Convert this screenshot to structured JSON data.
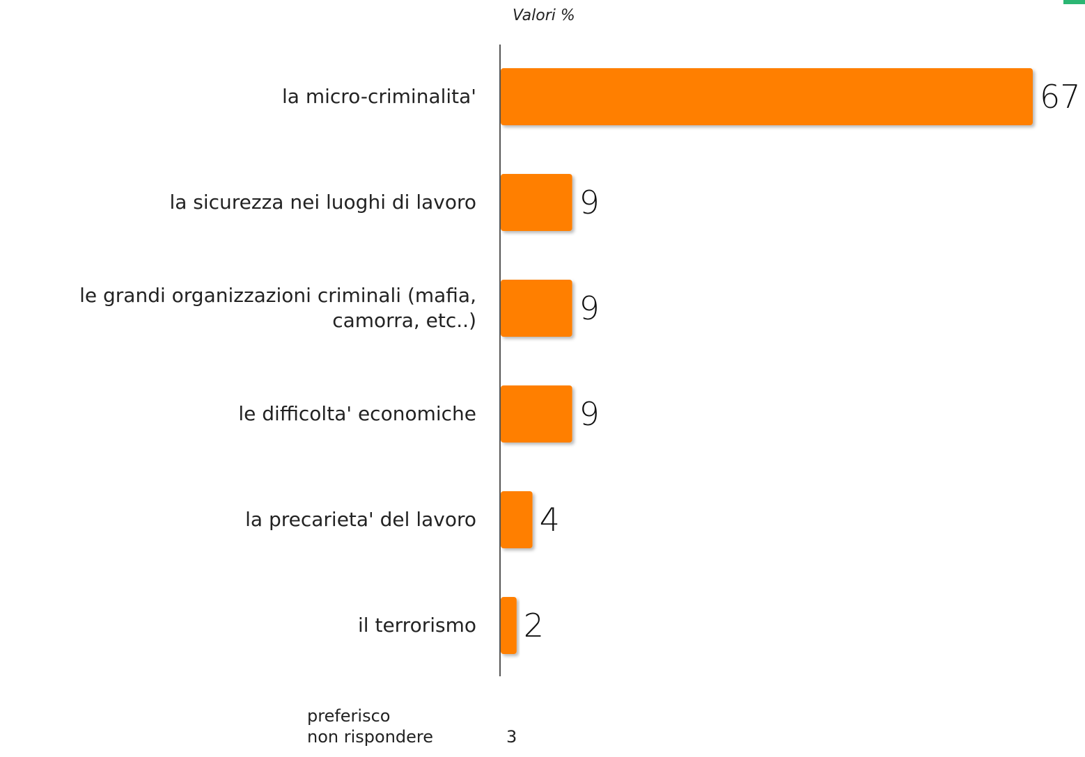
{
  "chart_data": {
    "type": "bar",
    "orientation": "horizontal",
    "unit_label": "Valori %",
    "categories": [
      "la micro-criminalita'",
      "la sicurezza nei luoghi di lavoro",
      "le grandi organizzazioni criminali (mafia, camorra, etc..)",
      "le difficolta' economiche",
      "la precarieta' del lavoro",
      "il terrorismo"
    ],
    "category_lines": [
      [
        "la micro-criminalita'"
      ],
      [
        "la sicurezza nei luoghi di lavoro"
      ],
      [
        "le grandi organizzazioni criminali (mafia,",
        "camorra, etc..)"
      ],
      [
        "le difficolta' economiche"
      ],
      [
        "la precarieta' del lavoro"
      ],
      [
        "il terrorismo"
      ]
    ],
    "values": [
      67,
      9,
      9,
      9,
      4,
      2
    ],
    "xlim": [
      0,
      67
    ],
    "bar_color": "#ff7f00",
    "grid": false,
    "legend": "none"
  },
  "footnote": {
    "line1": "preferisco",
    "line2": "non rispondere",
    "value": "3"
  }
}
